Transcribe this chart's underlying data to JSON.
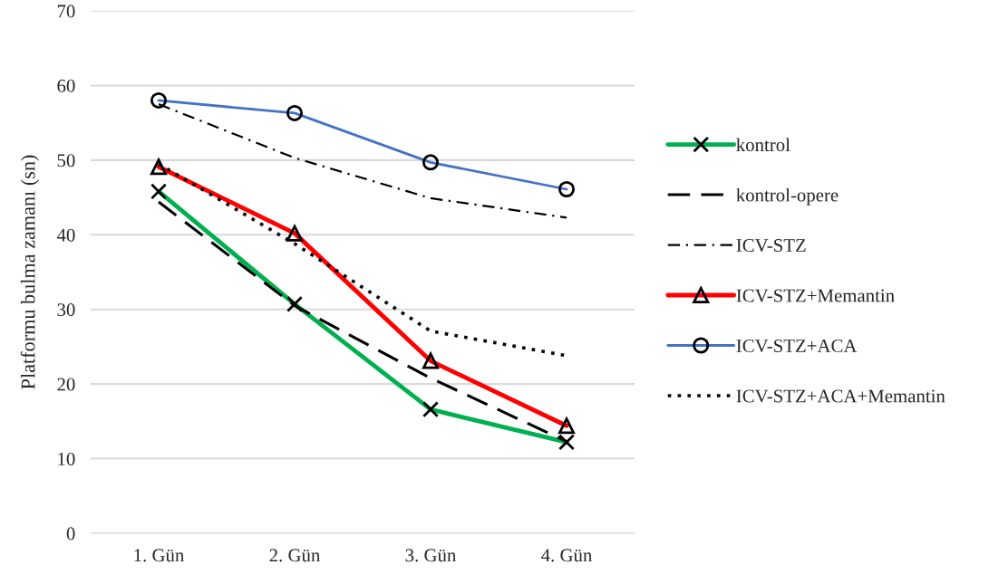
{
  "chart_data": {
    "type": "line",
    "ylabel": "Platformu bulma zamanı (sn)",
    "categories": [
      "1. Gün",
      "2. Gün",
      "3. Gün",
      "4. Gün"
    ],
    "series": [
      {
        "name": "kontrol",
        "color": "#00b050",
        "marker": "cross",
        "line_style": "solid",
        "values": [
          45.8,
          30.7,
          16.6,
          12.2
        ]
      },
      {
        "name": "kontrol-opere",
        "color": "#000000",
        "line_style": "dashed",
        "values": [
          44.4,
          30.5,
          20.8,
          12.3
        ]
      },
      {
        "name": "ICV-STZ",
        "color": "#000000",
        "line_style": "dashdot",
        "values": [
          57.5,
          50.3,
          44.9,
          42.3
        ]
      },
      {
        "name": "ICV-STZ+Memantin",
        "color": "#ff0000",
        "marker": "triangle",
        "line_style": "solid",
        "values": [
          49.1,
          40.2,
          23.1,
          14.4
        ]
      },
      {
        "name": "ICV-STZ+ACA",
        "color": "#4472c4",
        "marker": "circle",
        "line_style": "solid",
        "values": [
          58.0,
          56.3,
          49.7,
          46.1
        ]
      },
      {
        "name": "ICV-STZ+ACA+Memantin",
        "color": "#000000",
        "line_style": "dotted",
        "values": [
          49.5,
          38.8,
          27.1,
          23.8
        ]
      }
    ],
    "ylim": [
      0,
      70
    ],
    "yticks": [
      0,
      10,
      20,
      30,
      40,
      50,
      60,
      70
    ],
    "grid": "y",
    "legend": "right"
  }
}
